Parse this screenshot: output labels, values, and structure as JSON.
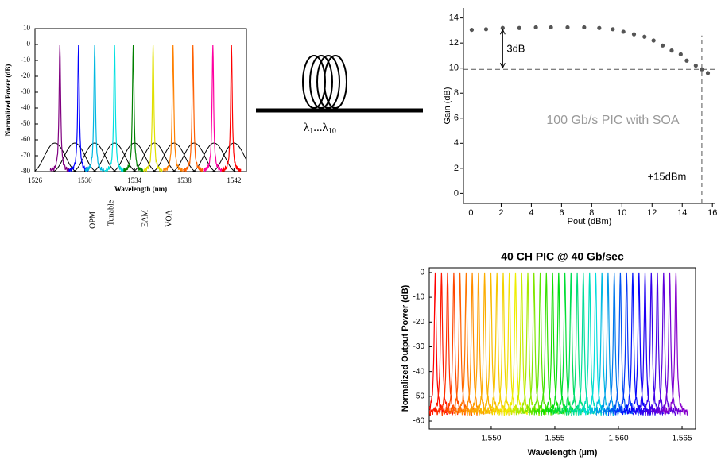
{
  "chart_data": [
    {
      "type": "spectrum",
      "x_label": "Wavelength (nm)",
      "y_label": "Normalized Power (dB)",
      "x": [
        1528.0,
        1529.5,
        1530.8,
        1532.4,
        1533.9,
        1535.5,
        1537.1,
        1538.7,
        1540.3,
        1541.8
      ],
      "values": [
        -0.5,
        -0.5,
        -0.5,
        -0.5,
        -0.5,
        -0.5,
        -0.5,
        -0.5,
        -0.5,
        -0.5
      ],
      "colors": [
        "#800080",
        "#0000ff",
        "#00b8e0",
        "#00e0e0",
        "#008000",
        "#e0e000",
        "#ff8000",
        "#ff6000",
        "#ff00a0",
        "#ff0000"
      ],
      "floor": -80,
      "filters": {
        "x": [
          1527.6,
          1529.2,
          1530.8,
          1532.4,
          1534.0,
          1535.6,
          1537.2,
          1538.8,
          1540.4,
          1542.0
        ],
        "values": [
          -62,
          -62,
          -62,
          -62,
          -62,
          -62,
          -62,
          -62,
          -62,
          -62
        ],
        "color": "#000000"
      },
      "xlim": [
        1526,
        1543
      ],
      "ylim": [
        -80,
        10
      ],
      "xticks": [
        1526,
        1530,
        1534,
        1538,
        1542
      ],
      "yticks": [
        10,
        0,
        -10,
        -20,
        -30,
        -40,
        -50,
        -60,
        -70,
        -80
      ],
      "annotations": [
        "OPM",
        "Tunable",
        "EAM",
        "VOA"
      ]
    },
    {
      "type": "scatter",
      "x_label": "Pout (dBm)",
      "y_label": "Gain (dB)",
      "x": [
        0.05,
        1.0,
        2.1,
        3.2,
        4.3,
        5.3,
        6.4,
        7.5,
        8.5,
        9.4,
        10.1,
        10.8,
        11.5,
        12.1,
        12.7,
        13.3,
        13.9,
        14.3,
        14.9,
        15.3,
        15.7
      ],
      "values": [
        13.05,
        13.1,
        13.2,
        13.2,
        13.25,
        13.25,
        13.25,
        13.25,
        13.2,
        13.1,
        12.9,
        12.7,
        12.5,
        12.2,
        11.8,
        11.4,
        11.1,
        10.6,
        10.2,
        9.9,
        9.6
      ],
      "color": "#555555",
      "xlim": [
        -0.5,
        16.2
      ],
      "ylim": [
        -0.8,
        14.8
      ],
      "xticks": [
        0,
        2,
        4,
        6,
        8,
        10,
        12,
        14,
        16
      ],
      "yticks": [
        0,
        2,
        4,
        6,
        8,
        10,
        12,
        14
      ],
      "hline": 9.9,
      "vline": 15.3,
      "annotations": [
        "3dB",
        "100 Gb/s PIC with SOA",
        "+15dBm"
      ]
    },
    {
      "type": "spectrum",
      "title": "40 CH PIC @ 40 Gb/sec",
      "x_label": "Wavelength (µm)",
      "y_label": "Normalized Output Power (dB)",
      "x": [
        1.5456,
        1.54609,
        1.54657,
        1.54706,
        1.54754,
        1.54803,
        1.54851,
        1.549,
        1.54948,
        1.54997,
        1.55045,
        1.55094,
        1.55142,
        1.55191,
        1.55239,
        1.55288,
        1.55336,
        1.55385,
        1.55433,
        1.55482,
        1.5553,
        1.55579,
        1.55627,
        1.55676,
        1.55724,
        1.55773,
        1.55821,
        1.5587,
        1.55918,
        1.55967,
        1.56015,
        1.56064,
        1.56112,
        1.56161,
        1.56209,
        1.56258,
        1.56306,
        1.56355,
        1.56403,
        1.56452
      ],
      "values": [
        0,
        0,
        0,
        0,
        0,
        0,
        0,
        0,
        0,
        0,
        0,
        0,
        0,
        0,
        0,
        0,
        0,
        0,
        0,
        0,
        0,
        0,
        0,
        0,
        0,
        0,
        0,
        0,
        0,
        0,
        0,
        0,
        0,
        0,
        0,
        0,
        0,
        0,
        0,
        0
      ],
      "gradient": [
        "#ff0000",
        "#ff9900",
        "#eeee00",
        "#00dd00",
        "#00dddd",
        "#0000ff",
        "#8800cc"
      ],
      "floor": -57,
      "xlim": [
        1.54513,
        1.56606
      ],
      "ylim": [
        -63.2,
        1.9
      ],
      "xticks": [
        {
          "value": 1.55,
          "label": "1.550"
        },
        {
          "value": 1.555,
          "label": "1.555"
        },
        {
          "value": 1.56,
          "label": "1.560"
        },
        {
          "value": 1.565,
          "label": "1.565"
        }
      ],
      "yticks": [
        0,
        -10,
        -20,
        -30,
        -40,
        -50,
        -60
      ]
    }
  ],
  "fiber_label": {
    "symbol": "λ",
    "first": "1",
    "dots": "...",
    "last": "10"
  }
}
